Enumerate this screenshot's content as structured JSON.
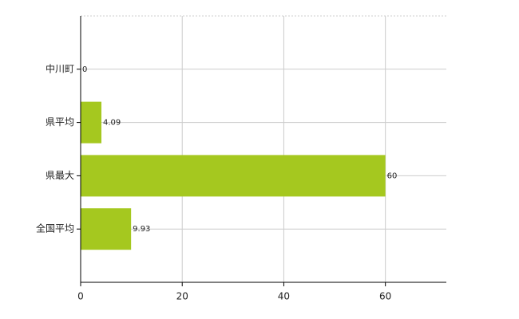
{
  "chart_data": {
    "type": "barh",
    "categories": [
      "中川町",
      "県平均",
      "県最大",
      "全国平均"
    ],
    "values": [
      0,
      4.09,
      60,
      9.93
    ],
    "color": "#a5c81f",
    "xlim": [
      0,
      72
    ],
    "xticks": [
      0,
      20,
      40,
      60
    ],
    "grid": true
  }
}
